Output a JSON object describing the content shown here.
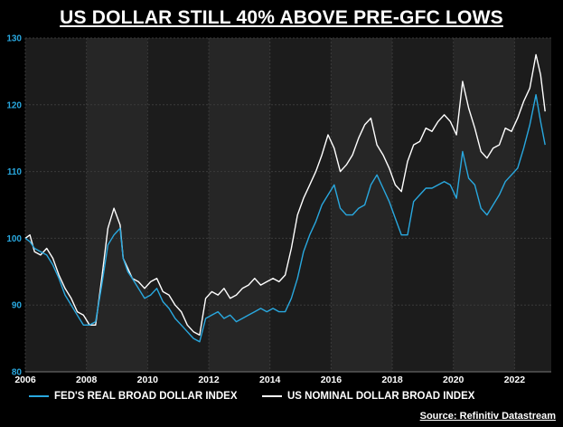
{
  "title": "US DOLLAR STILL 40% ABOVE PRE-GFC LOWS",
  "source": "Source: Refinitiv Datastream",
  "colors": {
    "background": "#000000",
    "plot_background": "#1c1c1c",
    "plot_band": "#262626",
    "grid": "#3a3a3a",
    "real_series": "#29a8df",
    "nominal_series": "#ffffff",
    "y_tick": "#29a8df",
    "x_tick": "#ffffff"
  },
  "chart_data": {
    "type": "line",
    "title": "US DOLLAR STILL 40% ABOVE PRE-GFC LOWS",
    "xlabel": "",
    "ylabel": "",
    "xlim": [
      2006.0,
      2023.2
    ],
    "ylim": [
      80,
      130
    ],
    "x_ticks": [
      "2006",
      "2008",
      "2010",
      "2012",
      "2014",
      "2016",
      "2018",
      "2020",
      "2022"
    ],
    "y_ticks": [
      "80",
      "90",
      "100",
      "110",
      "120",
      "130"
    ],
    "grid": true,
    "legend_position": "bottom",
    "series": [
      {
        "name": "FED'S REAL BROAD DOLLAR INDEX",
        "color": "#29a8df",
        "x": [
          2006.0,
          2006.15,
          2006.3,
          2006.5,
          2006.7,
          2006.9,
          2007.1,
          2007.3,
          2007.5,
          2007.7,
          2007.9,
          2008.1,
          2008.3,
          2008.5,
          2008.7,
          2008.9,
          2009.1,
          2009.2,
          2009.35,
          2009.5,
          2009.7,
          2009.9,
          2010.1,
          2010.3,
          2010.5,
          2010.7,
          2010.9,
          2011.1,
          2011.3,
          2011.5,
          2011.7,
          2011.9,
          2012.1,
          2012.3,
          2012.5,
          2012.7,
          2012.9,
          2013.1,
          2013.3,
          2013.5,
          2013.7,
          2013.9,
          2014.1,
          2014.3,
          2014.5,
          2014.7,
          2014.9,
          2015.1,
          2015.3,
          2015.5,
          2015.7,
          2015.9,
          2016.1,
          2016.3,
          2016.5,
          2016.7,
          2016.9,
          2017.1,
          2017.3,
          2017.5,
          2017.7,
          2017.9,
          2018.1,
          2018.3,
          2018.5,
          2018.7,
          2018.9,
          2019.1,
          2019.3,
          2019.5,
          2019.7,
          2019.9,
          2020.1,
          2020.3,
          2020.5,
          2020.7,
          2020.9,
          2021.1,
          2021.3,
          2021.5,
          2021.7,
          2021.9,
          2022.1,
          2022.3,
          2022.5,
          2022.7,
          2022.85,
          2023.0
        ],
        "values": [
          100.0,
          99.5,
          98.5,
          98.0,
          97.5,
          96.0,
          94.0,
          91.5,
          90.0,
          88.5,
          87.0,
          87.0,
          87.5,
          93.0,
          99.0,
          100.5,
          101.5,
          97.0,
          95.0,
          94.0,
          92.5,
          91.0,
          91.5,
          92.5,
          90.5,
          89.5,
          88.0,
          87.0,
          86.0,
          85.0,
          84.5,
          88.0,
          88.5,
          89.0,
          88.0,
          88.5,
          87.5,
          88.0,
          88.5,
          89.0,
          89.5,
          89.0,
          89.5,
          89.0,
          89.0,
          91.0,
          94.0,
          98.0,
          100.5,
          102.5,
          105.0,
          106.5,
          108.0,
          104.5,
          103.5,
          103.5,
          104.5,
          105.0,
          108.0,
          109.5,
          107.5,
          105.5,
          103.0,
          100.5,
          100.5,
          105.5,
          106.5,
          107.5,
          107.5,
          108.0,
          108.5,
          108.0,
          106.0,
          113.0,
          109.0,
          108.0,
          104.5,
          103.5,
          105.0,
          106.5,
          108.5,
          109.5,
          110.5,
          113.5,
          117.0,
          121.5,
          117.5,
          114.0
        ]
      },
      {
        "name": "US NOMINAL DOLLAR BROAD INDEX",
        "color": "#ffffff",
        "x": [
          2006.0,
          2006.15,
          2006.3,
          2006.5,
          2006.7,
          2006.9,
          2007.1,
          2007.3,
          2007.5,
          2007.7,
          2007.9,
          2008.1,
          2008.3,
          2008.5,
          2008.7,
          2008.9,
          2009.1,
          2009.2,
          2009.35,
          2009.5,
          2009.7,
          2009.9,
          2010.1,
          2010.3,
          2010.5,
          2010.7,
          2010.9,
          2011.1,
          2011.3,
          2011.5,
          2011.7,
          2011.9,
          2012.1,
          2012.3,
          2012.5,
          2012.7,
          2012.9,
          2013.1,
          2013.3,
          2013.5,
          2013.7,
          2013.9,
          2014.1,
          2014.3,
          2014.5,
          2014.7,
          2014.9,
          2015.1,
          2015.3,
          2015.5,
          2015.7,
          2015.9,
          2016.1,
          2016.3,
          2016.5,
          2016.7,
          2016.9,
          2017.1,
          2017.3,
          2017.5,
          2017.7,
          2017.9,
          2018.1,
          2018.3,
          2018.5,
          2018.7,
          2018.9,
          2019.1,
          2019.3,
          2019.5,
          2019.7,
          2019.9,
          2020.1,
          2020.3,
          2020.5,
          2020.7,
          2020.9,
          2021.1,
          2021.3,
          2021.5,
          2021.7,
          2021.9,
          2022.1,
          2022.3,
          2022.5,
          2022.7,
          2022.85,
          2023.0
        ],
        "values": [
          100.0,
          100.5,
          98.0,
          97.5,
          98.5,
          97.0,
          94.5,
          92.5,
          91.0,
          89.0,
          88.5,
          87.0,
          87.0,
          94.0,
          101.5,
          104.5,
          102.0,
          97.0,
          95.5,
          94.0,
          93.5,
          92.5,
          93.5,
          94.0,
          92.0,
          91.5,
          90.0,
          89.0,
          87.0,
          86.0,
          85.5,
          91.0,
          92.0,
          91.5,
          92.5,
          91.0,
          91.5,
          92.5,
          93.0,
          94.0,
          93.0,
          93.5,
          94.0,
          93.5,
          94.5,
          98.5,
          103.5,
          106.0,
          108.0,
          110.0,
          112.5,
          115.5,
          113.5,
          110.0,
          111.0,
          112.5,
          115.0,
          117.0,
          118.0,
          114.0,
          112.5,
          110.5,
          108.0,
          107.0,
          111.5,
          114.0,
          114.5,
          116.5,
          116.0,
          117.5,
          118.5,
          117.5,
          115.5,
          123.5,
          119.5,
          116.5,
          113.0,
          112.0,
          113.5,
          114.0,
          116.5,
          116.0,
          118.0,
          120.5,
          122.5,
          127.5,
          124.5,
          119.0
        ]
      }
    ]
  }
}
